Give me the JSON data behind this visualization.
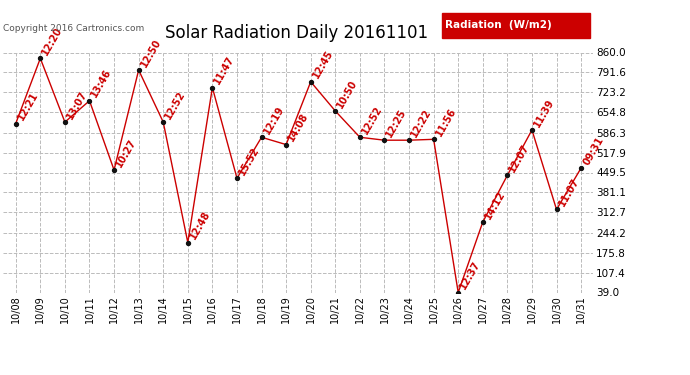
{
  "title": "Solar Radiation Daily 20161101",
  "copyright": "Copyright 2016 Cartronics.com",
  "legend_label": "Radiation  (W/m2)",
  "dates": [
    "10/08",
    "10/09",
    "10/10",
    "10/11",
    "10/12",
    "10/13",
    "10/14",
    "10/15",
    "10/16",
    "10/17",
    "10/18",
    "10/19",
    "10/20",
    "10/21",
    "10/22",
    "10/23",
    "10/24",
    "10/25",
    "10/26",
    "10/27",
    "10/28",
    "10/29",
    "10/30",
    "10/31"
  ],
  "values": [
    617,
    840,
    622,
    695,
    458,
    800,
    622,
    210,
    740,
    430,
    570,
    545,
    760,
    660,
    570,
    560,
    560,
    563,
    39,
    280,
    440,
    595,
    323,
    465
  ],
  "labels": [
    "12:21",
    "12:20",
    "13:07",
    "13:46",
    "10:27",
    "12:50",
    "12:52",
    "12:48",
    "11:47",
    "15:52",
    "12:19",
    "14:08",
    "12:45",
    "10:50",
    "12:52",
    "12:25",
    "12:22",
    "11:56",
    "12:37",
    "14:12",
    "12:07",
    "11:39",
    "11:07",
    "09:31"
  ],
  "ylim_min": 39.0,
  "ylim_max": 860.0,
  "ytick_labels": [
    "860.0",
    "791.6",
    "723.2",
    "654.8",
    "586.3",
    "517.9",
    "449.5",
    "381.1",
    "312.7",
    "244.2",
    "175.8",
    "107.4",
    "39.0"
  ],
  "ytick_values": [
    860.0,
    791.6,
    723.2,
    654.8,
    586.3,
    517.9,
    449.5,
    381.1,
    312.7,
    244.2,
    175.8,
    107.4,
    39.0
  ],
  "line_color": "#cc0000",
  "marker_color": "#111111",
  "label_color": "#cc0000",
  "bg_color": "#ffffff",
  "grid_color": "#bbbbbb",
  "title_fontsize": 12,
  "point_label_fontsize": 7,
  "copyright_fontsize": 6.5,
  "legend_bg": "#cc0000",
  "legend_text_color": "#ffffff"
}
